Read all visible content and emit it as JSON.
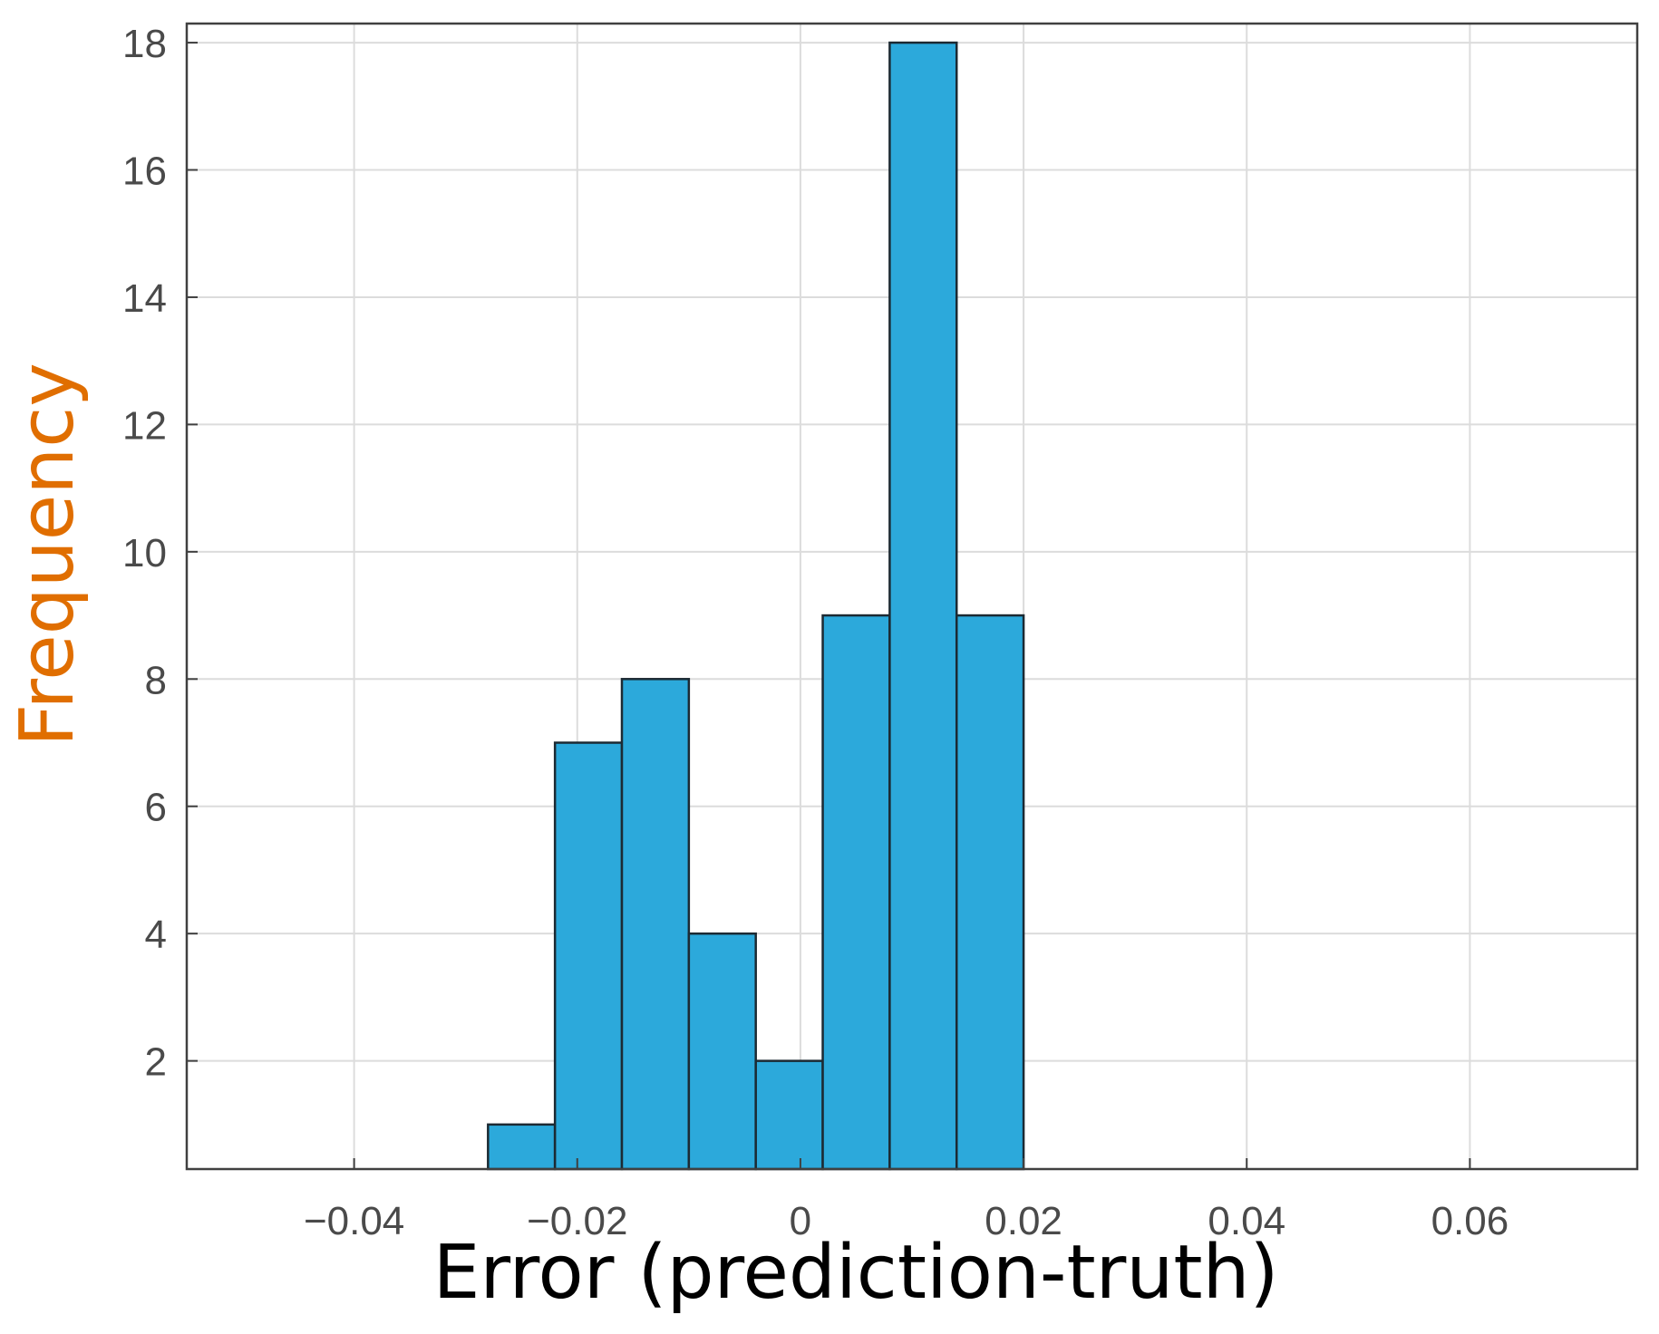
{
  "chart_data": {
    "type": "bar",
    "title": "",
    "xlabel": "Error (prediction-truth)",
    "ylabel": "Frequency",
    "xlim": [
      -0.055,
      0.075
    ],
    "ylim": [
      0.3,
      18.3
    ],
    "xticks": [
      -0.04,
      -0.02,
      0,
      0.02,
      0.04,
      0.06
    ],
    "xtick_labels": [
      "−0.04",
      "−0.02",
      "0",
      "0.02",
      "0.04",
      "0.06"
    ],
    "yticks": [
      2,
      4,
      6,
      8,
      10,
      12,
      14,
      16,
      18
    ],
    "ytick_labels": [
      "2",
      "4",
      "6",
      "8",
      "10",
      "12",
      "14",
      "16",
      "18"
    ],
    "grid": true,
    "bin_edges": [
      -0.028,
      -0.022,
      -0.016,
      -0.01,
      -0.004,
      0.002,
      0.008,
      0.014,
      0.02
    ],
    "values": [
      1,
      7,
      8,
      4,
      2,
      9,
      18,
      9
    ],
    "colors": {
      "bar_fill": "#2ca9db",
      "bar_edge": "#1c2a33",
      "axis_title": "#000000",
      "ylabel": "#e06e00",
      "grid": "#dcdcdc",
      "axes": "#404040"
    }
  }
}
